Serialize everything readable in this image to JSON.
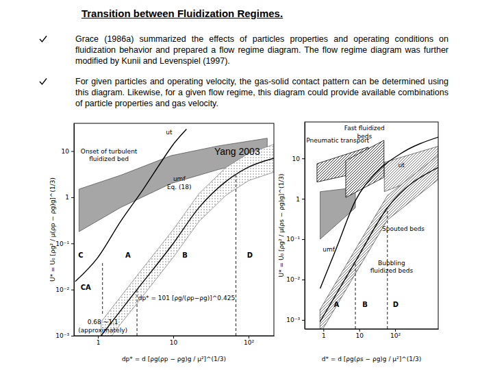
{
  "slide": {
    "title": "Transition between Fluidization Regimes.",
    "bullets": [
      "Grace (1986a) summarized the effects of particles properties and operating conditions on fluidization behavior and prepared a flow regime diagram. The flow regime diagram was further modified by Kunii and Levenspiel (1997).",
      "For given particles and operating velocity, the gas-solid contact pattern can be determined using this diagram. Likewise, for a given flow regime, this diagram could provide available combinations of particle properties and gas velocity."
    ],
    "source": "Yang 2003"
  },
  "chart_data": [
    {
      "type": "line",
      "log": true,
      "xlim": [
        0.48,
        217
      ],
      "ylim": [
        0.001,
        40
      ],
      "xticks": [
        1,
        10,
        {
          "value": 100,
          "label": "10²"
        }
      ],
      "yticks": [
        {
          "value": 0.001,
          "label": "10⁻³"
        },
        {
          "value": 0.01,
          "label": "10⁻²"
        },
        {
          "value": 0.1,
          "label": "10⁻¹"
        },
        1,
        10
      ],
      "x_label": "dp* = d [ρg(ρp − ρg)g / μ²]^(1/3)",
      "y_label": "U* = U₀ [ρg² / μ(ρp − ρg)g]^(1/3)",
      "series": [
        {
          "type": "area",
          "color": "#a6a6a6",
          "line_style": "solid",
          "x": [
            0.56,
            2,
            9.4,
            40,
            177
          ],
          "values": [
            1.5,
            3,
            8,
            13,
            19
          ],
          "lower": [
            0.18,
            0.6,
            2,
            4,
            7
          ]
        },
        {
          "type": "area",
          "color": "#808080",
          "line_style": "dotted",
          "x": [
            1.1,
            2,
            3.3,
            10,
            22,
            50,
            100,
            217
          ],
          "values": [
            0.002,
            0.007,
            0.02,
            0.2,
            1.2,
            4.4,
            9,
            14
          ],
          "lower": [
            0.0005,
            0.0018,
            0.005,
            0.05,
            0.3,
            1.1,
            2.3,
            3.5
          ]
        },
        {
          "type": "line",
          "color": "#000000",
          "line_style": "solid",
          "x": [
            0.5,
            1,
            2,
            4,
            7,
            10,
            15
          ],
          "values": [
            0.015,
            0.05,
            0.3,
            1.5,
            6,
            14,
            30
          ]
        },
        {
          "type": "line",
          "color": "#000000",
          "line_style": "solid",
          "x": [
            1.1,
            2,
            3.3,
            10,
            22,
            50,
            100,
            217
          ],
          "values": [
            0.001,
            0.0035,
            0.01,
            0.1,
            0.6,
            2.2,
            4.5,
            7
          ]
        },
        {
          "type": "line",
          "color": "#000000",
          "line_style": "dashed",
          "x": [
            1.15,
            1.15
          ],
          "values": [
            0.003,
            0.04
          ]
        },
        {
          "type": "line",
          "color": "#000000",
          "line_style": "dashed",
          "x": [
            3.3,
            3.3
          ],
          "values": [
            0.001,
            0.01
          ]
        },
        {
          "type": "line",
          "color": "#000000",
          "line_style": "dashed",
          "x": [
            68,
            68
          ],
          "values": [
            0.001,
            3
          ]
        }
      ],
      "annotations": [
        {
          "text": "Onset of turbulent",
          "x": 1.4,
          "y": 9
        },
        {
          "text": "fluidized bed",
          "x": 1.4,
          "y": 6
        },
        {
          "text": "ut",
          "x": 8.8,
          "y": 23
        },
        {
          "text": "umf",
          "x": 12,
          "y": 2.3
        },
        {
          "text": "Eq. (18)",
          "x": 12,
          "y": 1.5
        },
        {
          "text": "C",
          "x": 0.59,
          "y": 0.05
        },
        {
          "text": "A",
          "x": 2.5,
          "y": 0.05
        },
        {
          "text": "B",
          "x": 14.3,
          "y": 0.05
        },
        {
          "text": "D",
          "x": 104,
          "y": 0.05
        },
        {
          "text": "CA",
          "x": 0.69,
          "y": 0.01
        },
        {
          "text": "dp* = 101 [ρg/(ρp−ρg)]^0.425",
          "x": 15,
          "y": 0.006
        },
        {
          "text": "0.68 ~1.1",
          "x": 1.16,
          "y": 0.0018
        },
        {
          "text": "(approximately)",
          "x": 1.16,
          "y": 0.0012
        }
      ]
    },
    {
      "type": "line",
      "log": true,
      "xlim": [
        0.3,
        1600
      ],
      "ylim": [
        0.0006,
        80
      ],
      "xticks": [
        1,
        10,
        {
          "value": 100,
          "label": "10²"
        }
      ],
      "yticks": [
        {
          "value": 0.001,
          "label": "10⁻³"
        },
        {
          "value": 0.01,
          "label": "10⁻²"
        },
        {
          "value": 0.1,
          "label": "10⁻¹"
        },
        1,
        10
      ],
      "x_label": "d* = d [ρg(ρs − ρg)g / μ²]^(1/3)",
      "y_label": "U* = U₀ [ρg² / μ(ρs − ρg)g]^(1/3)",
      "series": [
        {
          "type": "area",
          "color": "#a6a6a6",
          "line_style": "solid",
          "x": [
            0.81,
            7.8
          ],
          "values": [
            1.5,
            1.9
          ],
          "lower": [
            0.1,
            0.6
          ]
        },
        {
          "type": "area",
          "color": "#555555",
          "line_style": "hatched",
          "x": [
            50,
            1600
          ],
          "values": [
            8,
            20
          ],
          "lower": [
            1.5,
            5
          ]
        },
        {
          "type": "area",
          "color": "#000000",
          "line_style": "hatched",
          "x": [
            0.66,
            17.8
          ],
          "values": [
            7.4,
            19
          ],
          "lower": [
            2.6,
            5
          ]
        },
        {
          "type": "area",
          "color": "#000000",
          "line_style": "hatched",
          "x": [
            4.2,
            49
          ],
          "values": [
            8.9,
            28
          ],
          "lower": [
            1.08,
            3.4
          ]
        },
        {
          "type": "area",
          "color": "#555555",
          "line_style": "hatched",
          "x": [
            0.8,
            7.8,
            61,
            1600
          ],
          "values": [
            0.0018,
            0.056,
            1.2,
            12
          ],
          "lower": [
            0.00045,
            0.014,
            0.3,
            3
          ]
        },
        {
          "type": "line",
          "color": "#000000",
          "line_style": "solid",
          "x": [
            0.81,
            2.3,
            7.8,
            27,
            140,
            1650
          ],
          "values": [
            0.006,
            0.06,
            0.9,
            4.1,
            13,
            34
          ]
        },
        {
          "type": "line",
          "color": "#000000",
          "line_style": "solid",
          "x": [
            0.8,
            7.8,
            61,
            1600
          ],
          "values": [
            0.0009,
            0.028,
            0.6,
            6
          ]
        },
        {
          "type": "line",
          "color": "#000000",
          "line_style": "dashed",
          "x": [
            7.8,
            7.8
          ],
          "values": [
            0.0006,
            0.028
          ]
        },
        {
          "type": "line",
          "color": "#000000",
          "line_style": "dashed",
          "x": [
            61,
            61
          ],
          "values": [
            0.0006,
            0.6
          ]
        }
      ],
      "annotations": [
        {
          "text": "Pneumatic transport",
          "x": 2.5,
          "y": 25
        },
        {
          "text": "Fast fluidized",
          "x": 14,
          "y": 50
        },
        {
          "text": "beds",
          "x": 14,
          "y": 31
        },
        {
          "text": "ut",
          "x": 150,
          "y": 6
        },
        {
          "text": "Spouted beds",
          "x": 170,
          "y": 0.16
        },
        {
          "text": "umf",
          "x": 1.4,
          "y": 0.05
        },
        {
          "text": "Bubbling",
          "x": 80,
          "y": 0.023
        },
        {
          "text": "fluidized beds",
          "x": 80,
          "y": 0.015
        },
        {
          "text": "A",
          "x": 2.3,
          "y": 0.0021
        },
        {
          "text": "B",
          "x": 14.5,
          "y": 0.0021
        },
        {
          "text": "D",
          "x": 104,
          "y": 0.0021
        }
      ]
    }
  ]
}
